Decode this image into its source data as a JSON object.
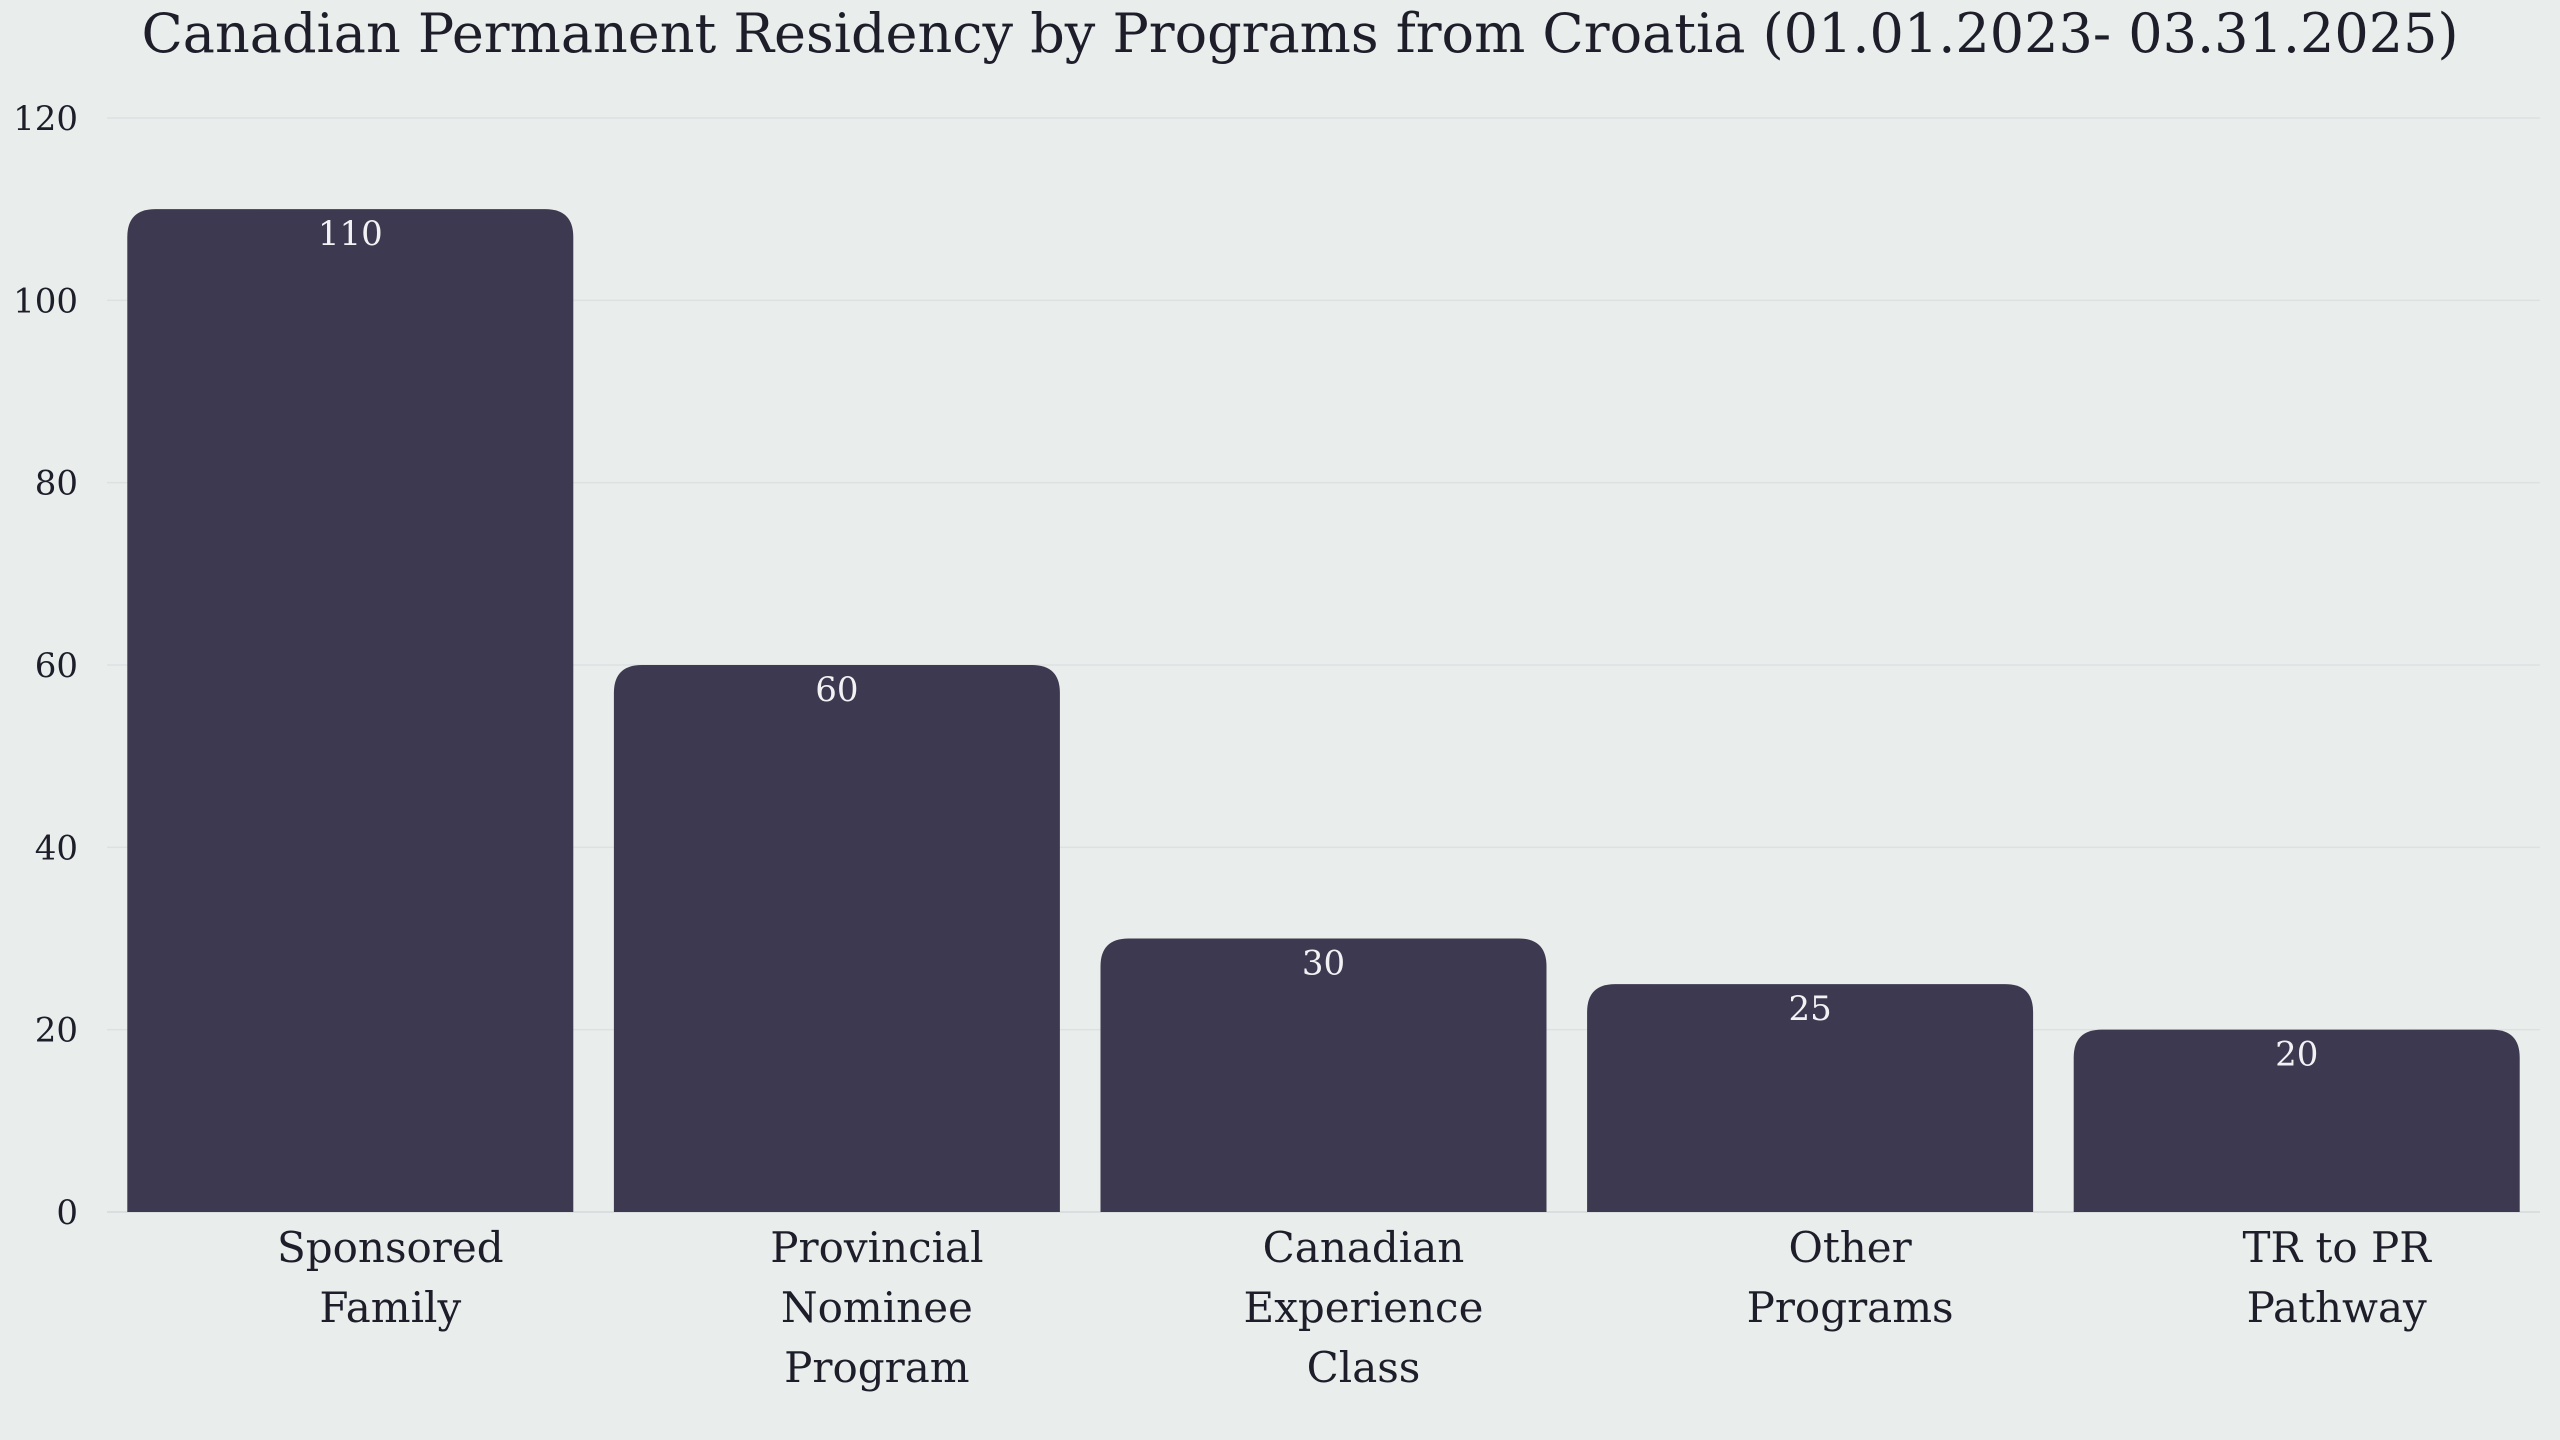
{
  "chart_data": {
    "type": "bar",
    "title": "Canadian Permanent Residency by Programs from Croatia (01.01.2023- 03.31.2025)",
    "xlabel": "",
    "ylabel": "",
    "categories": [
      [
        "Sponsored",
        "Family"
      ],
      [
        "Provincial",
        "Nominee",
        "Program"
      ],
      [
        "Canadian",
        "Experience",
        "Class"
      ],
      [
        "Other",
        "Programs"
      ],
      [
        "TR to PR",
        "Pathway"
      ]
    ],
    "values": [
      110,
      60,
      30,
      25,
      20
    ],
    "value_labels": [
      "110",
      "60",
      "30",
      "25",
      "20"
    ],
    "y_ticks": [
      "0",
      "20",
      "40",
      "60",
      "80",
      "100",
      "120"
    ],
    "ylim": [
      0,
      120
    ],
    "grid": true,
    "legend": "none",
    "colors": {
      "bar": "#3d3950",
      "background": "#e9edec",
      "grid": "#dde2e1",
      "value_text": "#f2f2f5",
      "text": "#1e1e2a"
    }
  }
}
